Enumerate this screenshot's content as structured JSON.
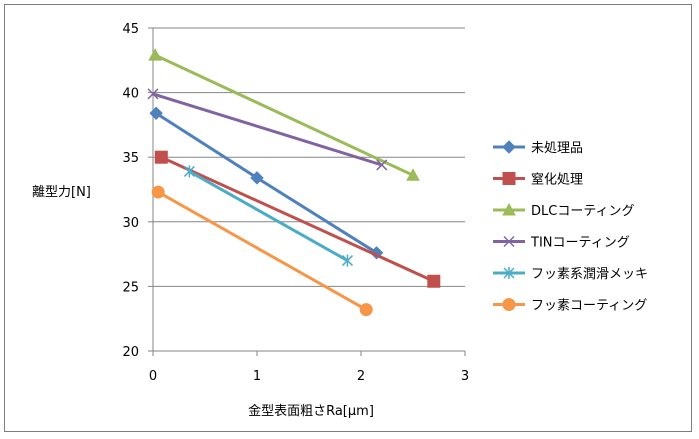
{
  "chart_data": {
    "type": "line",
    "title": "",
    "xlabel": "金型表面粗さRa[μm]",
    "ylabel": "離型力[N]",
    "xlim": [
      0,
      3
    ],
    "ylim": [
      20,
      45
    ],
    "x_ticks": [
      "0",
      "1",
      "2",
      "3"
    ],
    "y_ticks": [
      "20",
      "25",
      "30",
      "35",
      "40",
      "45"
    ],
    "grid": "horizontal",
    "legend_position": "right",
    "series": [
      {
        "name": "未処理品",
        "color": "#4f81bd",
        "marker": "diamond",
        "points": [
          [
            0.03,
            38.4
          ],
          [
            1.0,
            33.4
          ],
          [
            2.15,
            27.6
          ]
        ]
      },
      {
        "name": "窒化処理",
        "color": "#c0504d",
        "marker": "square",
        "points": [
          [
            0.08,
            35.0
          ],
          [
            2.7,
            25.4
          ]
        ]
      },
      {
        "name": "DLCコーティング",
        "color": "#9bbb59",
        "marker": "triangle",
        "points": [
          [
            0.02,
            42.9
          ],
          [
            2.5,
            33.6
          ]
        ]
      },
      {
        "name": "TINコーティング",
        "color": "#8064a2",
        "marker": "x",
        "points": [
          [
            0.0,
            39.9
          ],
          [
            2.2,
            34.4
          ]
        ]
      },
      {
        "name": "フッ素系潤滑メッキ",
        "color": "#4bacc6",
        "marker": "star",
        "points": [
          [
            0.35,
            33.9
          ],
          [
            1.87,
            27.0
          ]
        ]
      },
      {
        "name": "フッ素コーティング",
        "color": "#f79646",
        "marker": "circle",
        "points": [
          [
            0.05,
            32.3
          ],
          [
            2.05,
            23.2
          ]
        ]
      }
    ]
  }
}
